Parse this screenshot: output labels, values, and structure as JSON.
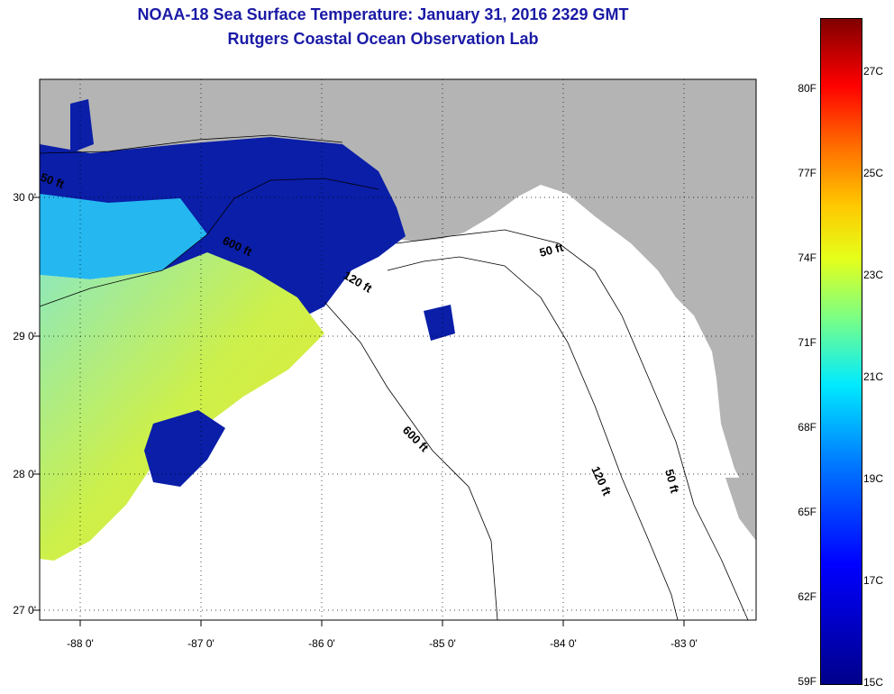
{
  "header": {
    "title": "NOAA-18 Sea Surface Temperature:  January 31, 2016 2329 GMT",
    "subtitle": "Rutgers Coastal Ocean Observation Lab"
  },
  "map": {
    "lat_labels": [
      "30 0'",
      "29 0'",
      "28 0'",
      "27 0'"
    ],
    "lon_labels": [
      "-88 0'",
      "-87 0'",
      "-86 0'",
      "-85 0'",
      "-84 0'",
      "-83 0'"
    ],
    "contour_labels": [
      "50 ft",
      "600 ft",
      "120 ft",
      "50 ft",
      "600 ft",
      "120 ft",
      "50 ft"
    ],
    "colors": {
      "land": "#b4b4b4",
      "ocean_nodata": "#ffffff",
      "cold": "#0a1ea8",
      "mid": "#25b8f0",
      "warm": "#d8ef4a"
    }
  },
  "colorbar": {
    "fahrenheit": [
      "80F",
      "77F",
      "74F",
      "71F",
      "68F",
      "65F",
      "62F",
      "59F"
    ],
    "celsius": [
      "27C",
      "25C",
      "23C",
      "21C",
      "19C",
      "17C",
      "15C"
    ]
  }
}
